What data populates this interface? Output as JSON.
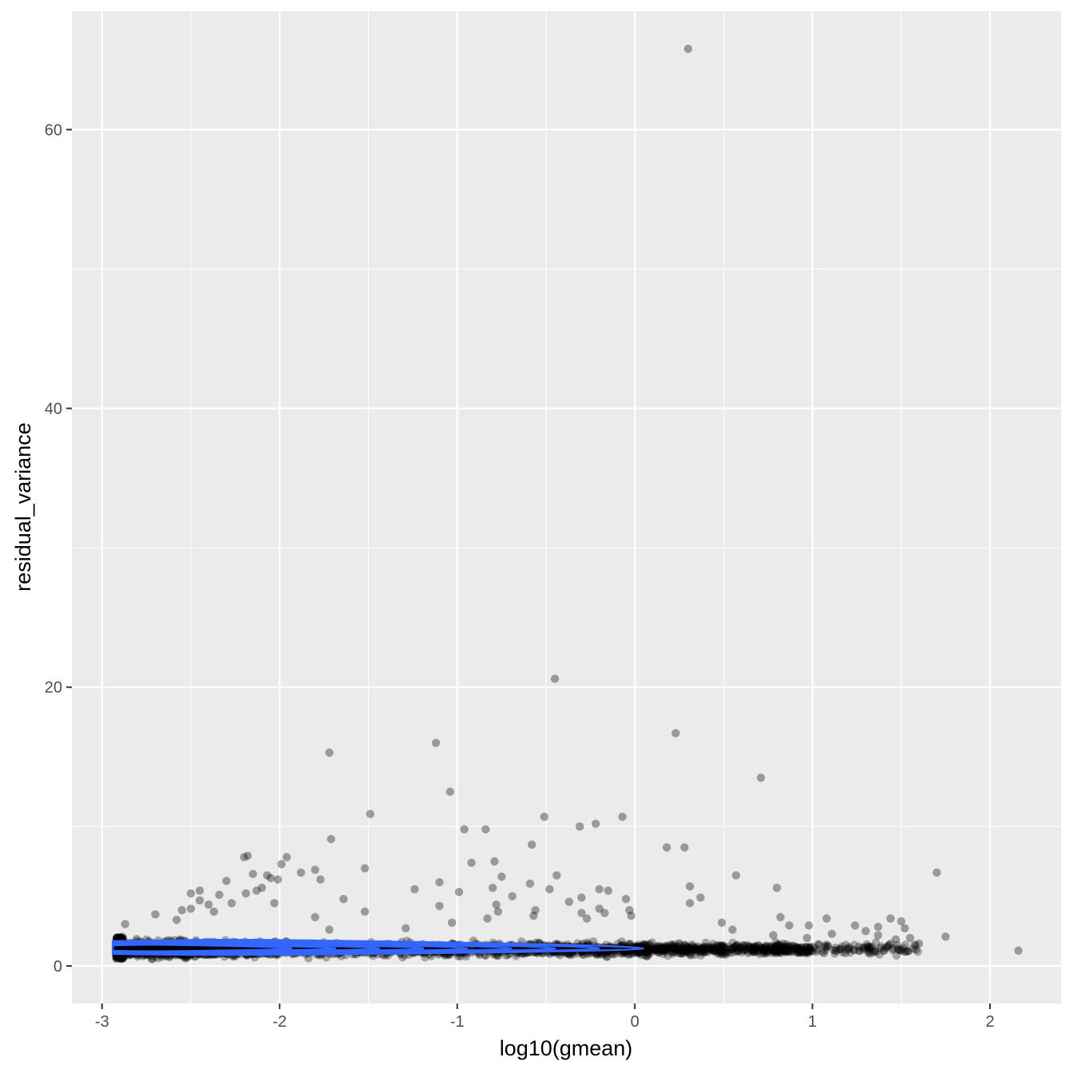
{
  "chart_data": {
    "type": "scatter",
    "title": "",
    "xlabel": "log10(gmean)",
    "ylabel": "residual_variance",
    "xlim": [
      -3.17,
      2.4
    ],
    "ylim": [
      -2.7,
      68.5
    ],
    "x_ticks": [
      -3,
      -2,
      -1,
      0,
      1,
      2
    ],
    "x_tick_labels": [
      "-3",
      "-2",
      "-1",
      "0",
      "1",
      "2"
    ],
    "y_ticks": [
      0,
      20,
      40,
      60
    ],
    "y_tick_labels": [
      "0",
      "20",
      "40",
      "60"
    ],
    "grid": true,
    "legend": "none",
    "colors": {
      "panel": "#ebebeb",
      "grid": "#ffffff",
      "points": "#000000",
      "density": "#3366ff"
    },
    "outlier_points": [
      {
        "x": 0.3,
        "y": 65.8
      },
      {
        "x": -0.45,
        "y": 20.6
      },
      {
        "x": 0.23,
        "y": 16.7
      },
      {
        "x": -1.12,
        "y": 16.0
      },
      {
        "x": -1.72,
        "y": 15.3
      },
      {
        "x": 0.71,
        "y": 13.5
      },
      {
        "x": -1.04,
        "y": 12.5
      },
      {
        "x": -1.49,
        "y": 10.9
      },
      {
        "x": -0.51,
        "y": 10.7
      },
      {
        "x": -0.07,
        "y": 10.7
      },
      {
        "x": -0.22,
        "y": 10.2
      },
      {
        "x": -0.31,
        "y": 10.0
      },
      {
        "x": -0.96,
        "y": 9.8
      },
      {
        "x": -0.84,
        "y": 9.8
      },
      {
        "x": -1.71,
        "y": 9.1
      },
      {
        "x": -0.58,
        "y": 8.7
      },
      {
        "x": 0.18,
        "y": 8.5
      },
      {
        "x": 0.28,
        "y": 8.5
      },
      {
        "x": -2.18,
        "y": 7.9
      },
      {
        "x": -2.2,
        "y": 7.8
      },
      {
        "x": -1.96,
        "y": 7.8
      },
      {
        "x": -0.79,
        "y": 7.5
      },
      {
        "x": -0.92,
        "y": 7.4
      },
      {
        "x": -1.99,
        "y": 7.3
      },
      {
        "x": -1.52,
        "y": 7.0
      },
      {
        "x": -1.8,
        "y": 6.9
      },
      {
        "x": 1.7,
        "y": 6.7
      },
      {
        "x": -1.88,
        "y": 6.7
      },
      {
        "x": -2.15,
        "y": 6.6
      },
      {
        "x": -2.07,
        "y": 6.5
      },
      {
        "x": -0.44,
        "y": 6.5
      },
      {
        "x": 0.57,
        "y": 6.5
      },
      {
        "x": -0.75,
        "y": 6.4
      },
      {
        "x": -2.05,
        "y": 6.3
      },
      {
        "x": -2.01,
        "y": 6.2
      },
      {
        "x": -1.77,
        "y": 6.2
      },
      {
        "x": -2.3,
        "y": 6.1
      },
      {
        "x": -1.1,
        "y": 6.0
      },
      {
        "x": -0.59,
        "y": 5.9
      },
      {
        "x": 0.31,
        "y": 5.7
      },
      {
        "x": -2.1,
        "y": 5.6
      },
      {
        "x": 0.8,
        "y": 5.6
      },
      {
        "x": -2.13,
        "y": 5.4
      },
      {
        "x": -0.2,
        "y": 5.5
      },
      {
        "x": -0.8,
        "y": 5.6
      },
      {
        "x": -0.48,
        "y": 5.5
      },
      {
        "x": -1.24,
        "y": 5.5
      },
      {
        "x": -0.15,
        "y": 5.4
      },
      {
        "x": -2.45,
        "y": 5.4
      },
      {
        "x": -0.99,
        "y": 5.3
      },
      {
        "x": -2.5,
        "y": 5.2
      },
      {
        "x": -2.19,
        "y": 5.2
      },
      {
        "x": -2.34,
        "y": 5.1
      },
      {
        "x": -0.69,
        "y": 5.0
      },
      {
        "x": -0.3,
        "y": 4.9
      },
      {
        "x": 0.37,
        "y": 4.9
      },
      {
        "x": -1.64,
        "y": 4.8
      },
      {
        "x": -0.05,
        "y": 4.8
      },
      {
        "x": -2.45,
        "y": 4.7
      },
      {
        "x": -0.37,
        "y": 4.6
      },
      {
        "x": 0.31,
        "y": 4.5
      },
      {
        "x": -2.27,
        "y": 4.5
      },
      {
        "x": -2.03,
        "y": 4.5
      },
      {
        "x": -2.4,
        "y": 4.4
      },
      {
        "x": -0.78,
        "y": 4.4
      },
      {
        "x": -1.1,
        "y": 4.3
      },
      {
        "x": -2.5,
        "y": 4.1
      },
      {
        "x": -0.56,
        "y": 4.0
      },
      {
        "x": -0.2,
        "y": 4.1
      },
      {
        "x": -2.55,
        "y": 4.0
      },
      {
        "x": -0.03,
        "y": 4.0
      },
      {
        "x": -1.52,
        "y": 3.9
      },
      {
        "x": -2.37,
        "y": 3.9
      },
      {
        "x": -0.77,
        "y": 3.9
      },
      {
        "x": -0.3,
        "y": 3.8
      },
      {
        "x": -0.17,
        "y": 3.8
      },
      {
        "x": -2.7,
        "y": 3.7
      },
      {
        "x": -0.57,
        "y": 3.6
      },
      {
        "x": -0.02,
        "y": 3.6
      },
      {
        "x": 0.82,
        "y": 3.5
      },
      {
        "x": -1.8,
        "y": 3.5
      },
      {
        "x": 1.08,
        "y": 3.4
      },
      {
        "x": -0.83,
        "y": 3.4
      },
      {
        "x": -0.27,
        "y": 3.4
      },
      {
        "x": 1.44,
        "y": 3.4
      },
      {
        "x": -2.58,
        "y": 3.3
      },
      {
        "x": 1.5,
        "y": 3.2
      },
      {
        "x": 0.49,
        "y": 3.1
      },
      {
        "x": -1.03,
        "y": 3.1
      },
      {
        "x": 0.98,
        "y": 2.9
      },
      {
        "x": -2.87,
        "y": 3.0
      },
      {
        "x": 0.87,
        "y": 2.9
      },
      {
        "x": 1.24,
        "y": 2.9
      },
      {
        "x": 1.37,
        "y": 2.8
      },
      {
        "x": 1.52,
        "y": 2.7
      },
      {
        "x": 0.55,
        "y": 2.6
      },
      {
        "x": -1.72,
        "y": 2.6
      },
      {
        "x": -1.29,
        "y": 2.7
      },
      {
        "x": 1.3,
        "y": 2.5
      },
      {
        "x": 1.11,
        "y": 2.3
      },
      {
        "x": 1.75,
        "y": 2.1
      },
      {
        "x": 0.97,
        "y": 2.0
      },
      {
        "x": 1.37,
        "y": 2.2
      },
      {
        "x": 1.47,
        "y": 1.9
      },
      {
        "x": 1.55,
        "y": 2.0
      },
      {
        "x": 1.6,
        "y": 1.6
      },
      {
        "x": 2.16,
        "y": 1.1
      },
      {
        "x": 1.44,
        "y": 1.6
      },
      {
        "x": 1.41,
        "y": 1.3
      },
      {
        "x": 0.78,
        "y": 2.2
      }
    ],
    "dense_band": {
      "x_range": [
        -2.92,
        2.16
      ],
      "y_center_approx": 1.2,
      "description_source": "overlapping points"
    },
    "density_contour": {
      "color": "#3366ff",
      "x_range": [
        -2.92,
        0.05
      ],
      "y_center": 1.25
    }
  }
}
